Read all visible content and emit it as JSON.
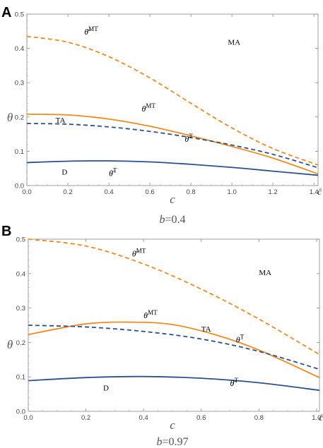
{
  "chart_data": [
    {
      "panel": "A",
      "type": "line",
      "ylabel": "θ",
      "xlabel": "c",
      "xlim": [
        0,
        1.42
      ],
      "ylim": [
        0,
        0.5
      ],
      "xticks": [
        "0.0",
        "0.2",
        "0.4",
        "0.6",
        "0.8",
        "1.0",
        "1.2",
        "1.4"
      ],
      "yticks": [
        "0.0",
        "0.1",
        "0.2",
        "0.3",
        "0.4",
        "0.5"
      ],
      "x_end_label": "ĉ",
      "caption_var": "b",
      "caption_value": "=0.4",
      "regions": [
        {
          "text": "MA",
          "x": 0.98,
          "y": 0.41
        },
        {
          "text": "TA",
          "x": 0.14,
          "y": 0.183
        },
        {
          "text": "D",
          "x": 0.17,
          "y": 0.032
        }
      ],
      "series": [
        {
          "id": "theta-bar-mt",
          "label_main": "θ̄",
          "label_sup": "MT",
          "label_at": [
            0.28,
            0.44
          ],
          "color": "#f28a1e",
          "dash": true,
          "x": [
            0,
            0.2,
            0.4,
            0.6,
            0.8,
            1.0,
            1.2,
            1.42
          ],
          "y": [
            0.435,
            0.418,
            0.376,
            0.314,
            0.24,
            0.168,
            0.108,
            0.06
          ]
        },
        {
          "id": "theta-mt",
          "label_main": "θ",
          "label_sup": "MT",
          "label_at": [
            0.56,
            0.216
          ],
          "color": "#f28a1e",
          "dash": false,
          "x": [
            0,
            0.2,
            0.4,
            0.6,
            0.8,
            1.0,
            1.2,
            1.42
          ],
          "y": [
            0.208,
            0.206,
            0.194,
            0.173,
            0.145,
            0.114,
            0.08,
            0.034
          ]
        },
        {
          "id": "theta-t",
          "label_main": "θ",
          "label_sup": "T",
          "label_at": [
            0.77,
            0.128
          ],
          "color": "#2e4f8f",
          "dash": true,
          "x": [
            0,
            0.2,
            0.4,
            0.6,
            0.8,
            1.0,
            1.2,
            1.42
          ],
          "y": [
            0.181,
            0.179,
            0.171,
            0.158,
            0.14,
            0.118,
            0.091,
            0.052
          ]
        },
        {
          "id": "theta-bar-t",
          "label_main": "θ̄",
          "label_sup": "T",
          "label_at": [
            0.4,
            0.028
          ],
          "color": "#2e4f8f",
          "dash": false,
          "x": [
            0,
            0.2,
            0.4,
            0.6,
            0.8,
            1.0,
            1.2,
            1.42
          ],
          "y": [
            0.067,
            0.071,
            0.072,
            0.069,
            0.062,
            0.053,
            0.042,
            0.03
          ]
        }
      ]
    },
    {
      "panel": "B",
      "type": "line",
      "ylabel": "θ",
      "xlabel": "c",
      "xlim": [
        0,
        1.01
      ],
      "ylim": [
        0,
        0.5
      ],
      "xticks": [
        "0.0",
        "0.2",
        "0.4",
        "0.6",
        "0.8",
        "1.0"
      ],
      "yticks": [
        "0.0",
        "0.1",
        "0.2",
        "0.3",
        "0.4",
        "0.5"
      ],
      "x_end_label": "ĉ",
      "caption_var": "b",
      "caption_value": "=0.97",
      "regions": [
        {
          "text": "MA",
          "x": 0.8,
          "y": 0.395
        },
        {
          "text": "TA",
          "x": 0.6,
          "y": 0.232
        },
        {
          "text": "D",
          "x": 0.26,
          "y": 0.06
        }
      ],
      "series": [
        {
          "id": "theta-bar-mt",
          "label_main": "θ̄",
          "label_sup": "MT",
          "label_at": [
            0.36,
            0.45
          ],
          "color": "#f28a1e",
          "dash": true,
          "x": [
            0,
            0.2,
            0.4,
            0.6,
            0.8,
            1.01
          ],
          "y": [
            0.5,
            0.48,
            0.428,
            0.355,
            0.268,
            0.165
          ]
        },
        {
          "id": "theta-mt",
          "label_main": "θ",
          "label_sup": "MT",
          "label_at": [
            0.4,
            0.27
          ],
          "color": "#f28a1e",
          "dash": false,
          "x": [
            0,
            0.2,
            0.36,
            0.5,
            0.65,
            0.8,
            1.01
          ],
          "y": [
            0.223,
            0.254,
            0.259,
            0.252,
            0.222,
            0.178,
            0.098
          ]
        },
        {
          "id": "theta-t",
          "label_main": "θ",
          "label_sup": "T",
          "label_at": [
            0.72,
            0.2
          ],
          "color": "#2e4f8f",
          "dash": true,
          "x": [
            0,
            0.2,
            0.4,
            0.6,
            0.8,
            1.01
          ],
          "y": [
            0.25,
            0.245,
            0.232,
            0.21,
            0.174,
            0.122
          ]
        },
        {
          "id": "theta-bar-t",
          "label_main": "θ̄",
          "label_sup": "T",
          "label_at": [
            0.7,
            0.074
          ],
          "color": "#2e4f8f",
          "dash": false,
          "x": [
            0,
            0.2,
            0.4,
            0.6,
            0.8,
            1.01
          ],
          "y": [
            0.089,
            0.098,
            0.101,
            0.096,
            0.083,
            0.061
          ]
        }
      ]
    }
  ]
}
